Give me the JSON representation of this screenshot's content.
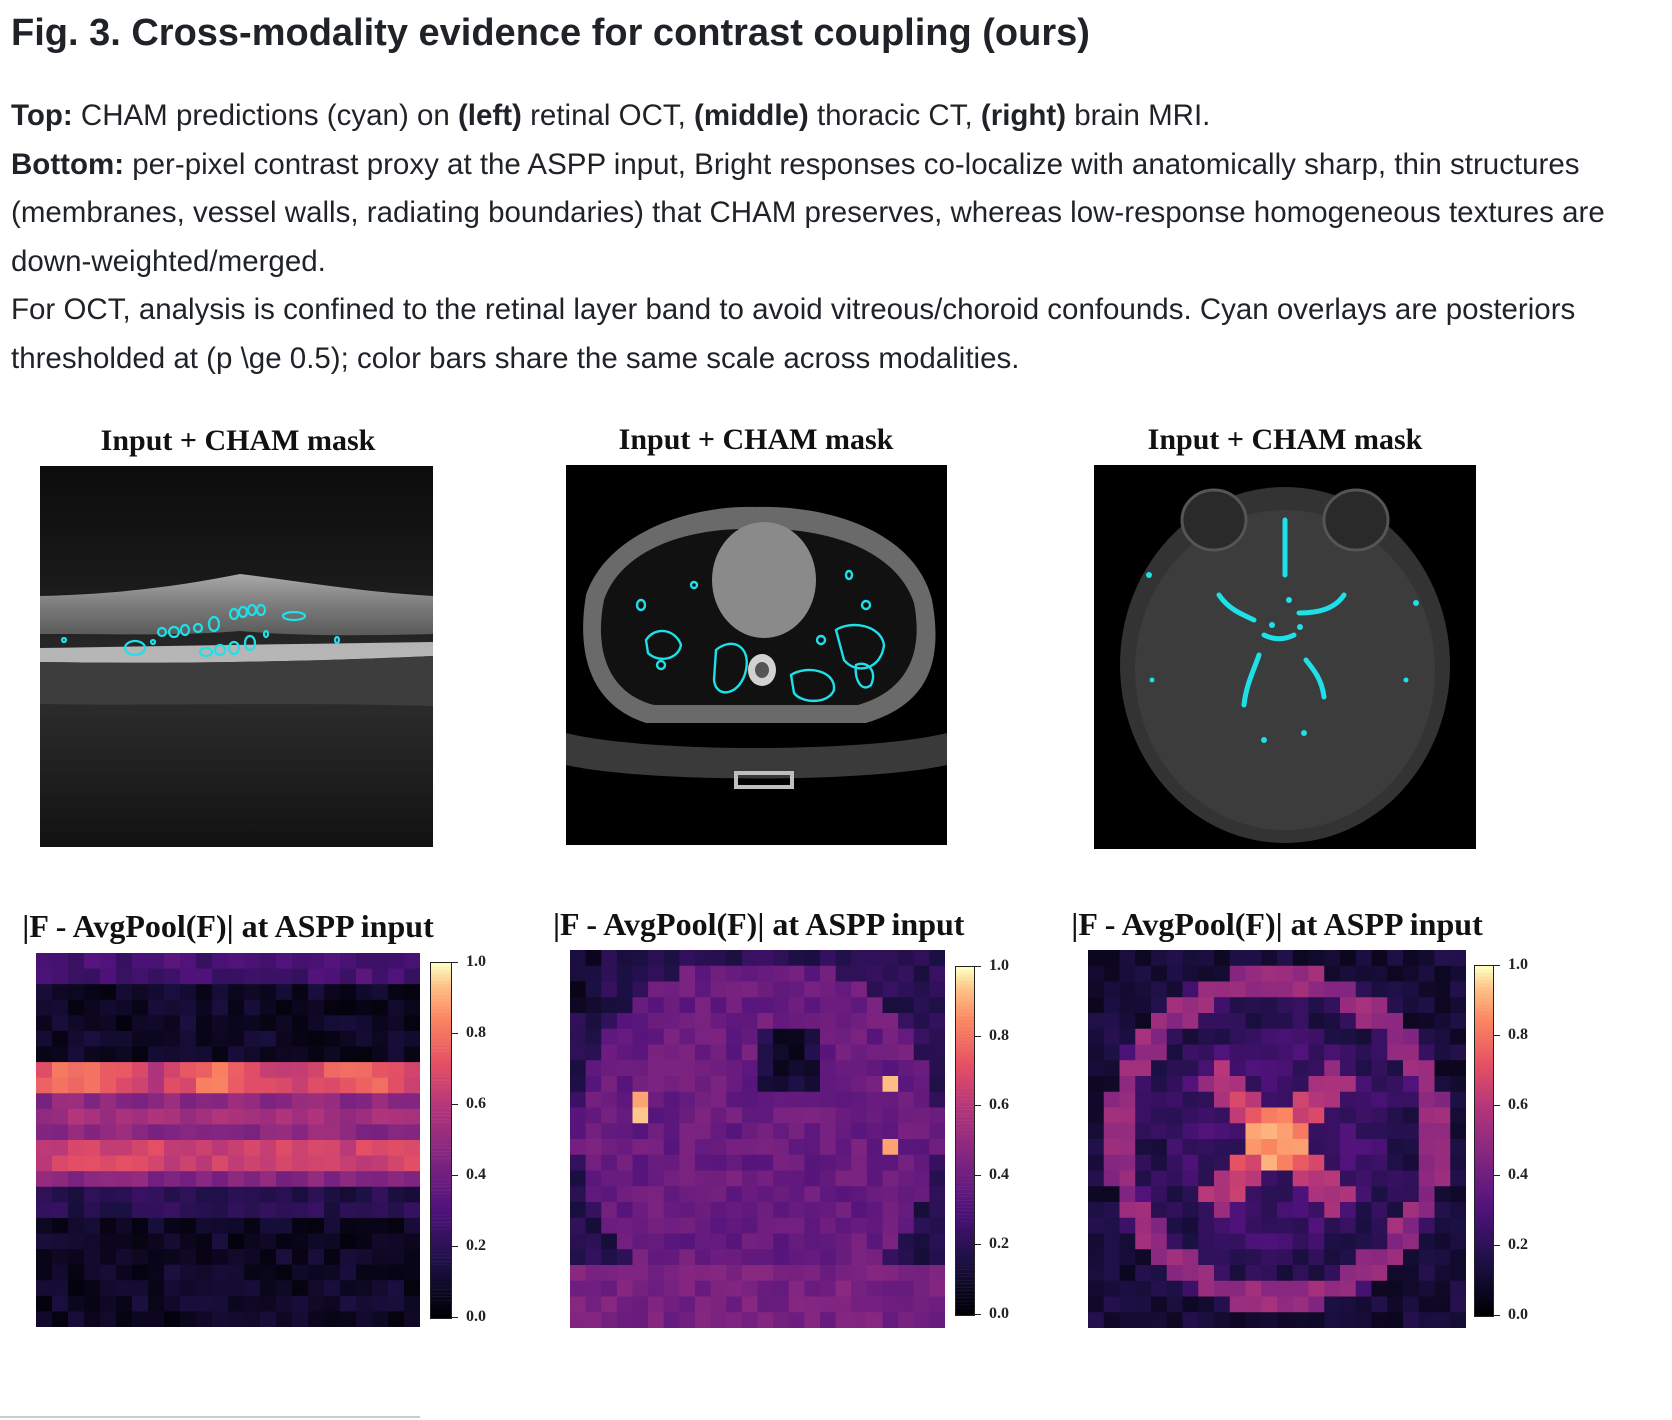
{
  "figure": {
    "title": "Fig. 3. Cross-modality evidence for contrast coupling (ours)",
    "caption_lines": [
      {
        "lead": "Top:",
        "parts": [
          {
            "t": " CHAM predictions (cyan) on ",
            "b": false
          },
          {
            "t": "(left)",
            "b": true
          },
          {
            "t": " retinal OCT, ",
            "b": false
          },
          {
            "t": "(middle)",
            "b": true
          },
          {
            "t": " thoracic CT, ",
            "b": false
          },
          {
            "t": "(right)",
            "b": true
          },
          {
            "t": " brain MRI.",
            "b": false
          }
        ]
      },
      {
        "lead": "Bottom:",
        "parts": [
          {
            "t": " per-pixel contrast proxy at the ASPP input, Bright responses co-localize with anatomically sharp, thin structures (membranes, vessel walls, radiating boundaries) that CHAM preserves, whereas low-response homogeneous textures are down-weighted/merged.",
            "b": false
          }
        ]
      },
      {
        "lead": "",
        "parts": [
          {
            "t": "For OCT, analysis is confined to the retinal layer band to avoid vitreous/choroid confounds. Cyan overlays are posteriors thresholded at (p \\ge 0.5); color bars share the same scale across modalities.",
            "b": false
          }
        ]
      }
    ]
  },
  "top_panels": [
    {
      "title": "Input + CHAM mask",
      "modality": "retinal OCT"
    },
    {
      "title": "Input + CHAM mask",
      "modality": "thoracic CT"
    },
    {
      "title": "Input + CHAM mask",
      "modality": "brain MRI"
    }
  ],
  "bottom_panels": [
    {
      "title": "|F - AvgPool(F)| at ASPP input"
    },
    {
      "title": "|F - AvgPool(F)| at ASPP input"
    },
    {
      "title": "|F - AvgPool(F)| at ASPP input"
    }
  ],
  "colorbar": {
    "ticks": [
      "1.0",
      "0.8",
      "0.6",
      "0.4",
      "0.2",
      "0.0"
    ],
    "colormap": "magma",
    "range": [
      0.0,
      1.0
    ]
  },
  "colors": {
    "overlay_cyan": "#1fe0e8",
    "text": "#1f2328"
  }
}
